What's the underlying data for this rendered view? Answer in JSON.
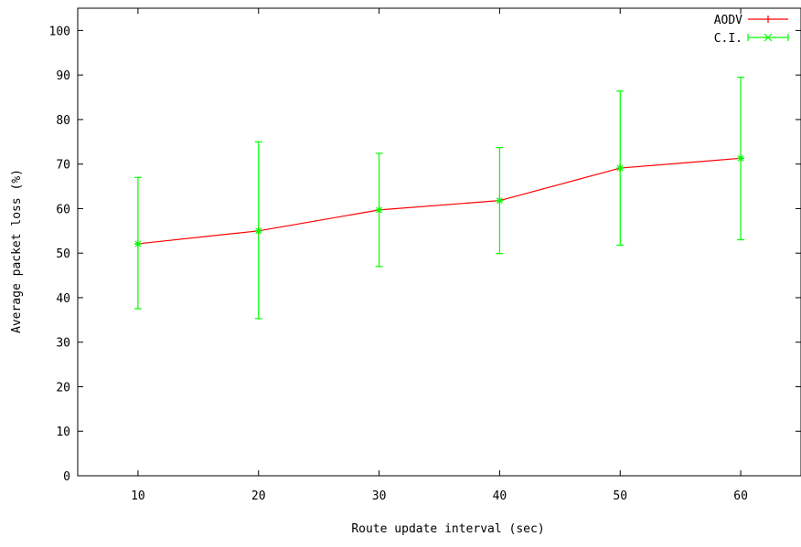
{
  "chart_data": {
    "type": "line",
    "xlabel": "Route update interval (sec)",
    "ylabel": "Average packet loss (%)",
    "xlim": [
      5,
      65
    ],
    "ylim": [
      0,
      105
    ],
    "x_ticks": [
      10,
      20,
      30,
      40,
      50,
      60
    ],
    "y_ticks": [
      0,
      10,
      20,
      30,
      40,
      50,
      60,
      70,
      80,
      90,
      100
    ],
    "grid": false,
    "legend_position": "top-right",
    "series": [
      {
        "name": "AODV",
        "color": "#ff0000",
        "marker": "plus",
        "x": [
          10,
          20,
          30,
          40,
          50,
          60
        ],
        "y": [
          52.1,
          55.0,
          59.7,
          61.8,
          69.1,
          71.3
        ]
      },
      {
        "name": "C.I.",
        "color": "#00ff00",
        "marker": "star",
        "kind": "errorbar",
        "x": [
          10,
          20,
          30,
          40,
          50,
          60
        ],
        "y": [
          52.1,
          55.0,
          59.7,
          61.8,
          69.1,
          71.3
        ],
        "low": [
          37.5,
          35.3,
          47.0,
          49.9,
          51.8,
          53.0
        ],
        "high": [
          67.0,
          75.0,
          72.4,
          73.7,
          86.4,
          89.5
        ]
      }
    ]
  }
}
